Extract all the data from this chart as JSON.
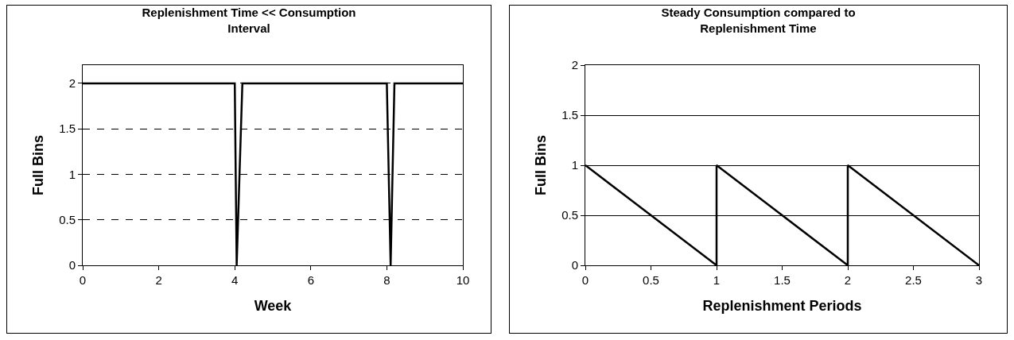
{
  "chart_data": [
    {
      "type": "line",
      "title": "Replenishment Time << Consumption Interval",
      "xlabel": "Week",
      "ylabel": "Full Bins",
      "x": [
        0,
        4,
        4.05,
        4.2,
        8,
        8.1,
        8.2,
        10
      ],
      "series": [
        {
          "color": "#000000",
          "values": [
            2,
            2,
            0,
            2,
            2,
            0,
            2,
            2
          ]
        }
      ],
      "xlim": [
        0,
        10
      ],
      "xticks": [
        0,
        2,
        4,
        6,
        8,
        10
      ],
      "ylim": [
        0,
        2.2
      ],
      "yticks": [
        0,
        0.5,
        1,
        1.5,
        2
      ],
      "grid": "y",
      "marker": "none",
      "line_style": "solid"
    },
    {
      "type": "line",
      "title": "Steady Consumption compared to Replenishment Time",
      "xlabel": "Replenishment Periods",
      "ylabel": "Full Bins",
      "x": [
        0,
        1,
        1,
        2,
        2,
        3
      ],
      "series": [
        {
          "color": "#000000",
          "values": [
            1,
            0,
            1,
            0,
            1,
            0
          ]
        }
      ],
      "xlim": [
        0,
        3
      ],
      "xticks": [
        0,
        0.5,
        1,
        1.5,
        2,
        2.5,
        3
      ],
      "ylim": [
        0,
        2
      ],
      "yticks": [
        0,
        0.5,
        1,
        1.5,
        2
      ],
      "grid": "y",
      "marker": "none",
      "line_style": "solid"
    }
  ]
}
